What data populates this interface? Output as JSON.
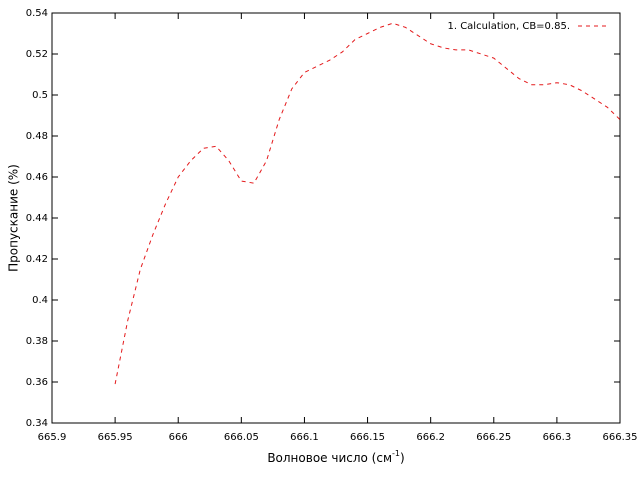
{
  "chart_data": {
    "type": "line",
    "xlabel": [
      "Волновое число (см",
      "-1",
      ")"
    ],
    "ylabel": "Пропускание (%)",
    "x": [
      665.95,
      665.96,
      665.97,
      665.98,
      665.99,
      666.0,
      666.01,
      666.02,
      666.03,
      666.04,
      666.05,
      666.06,
      666.07,
      666.08,
      666.09,
      666.1,
      666.11,
      666.12,
      666.13,
      666.14,
      666.15,
      666.16,
      666.17,
      666.18,
      666.19,
      666.2,
      666.21,
      666.22,
      666.23,
      666.24,
      666.25,
      666.26,
      666.27,
      666.28,
      666.29,
      666.3,
      666.31,
      666.32,
      666.33,
      666.34,
      666.35
    ],
    "series": [
      {
        "name": "1. Calculation, CB=0.85.",
        "color": "#e41a1c",
        "values": [
          0.359,
          0.39,
          0.415,
          0.432,
          0.447,
          0.46,
          0.468,
          0.474,
          0.475,
          0.468,
          0.458,
          0.457,
          0.468,
          0.488,
          0.503,
          0.511,
          0.514,
          0.517,
          0.521,
          0.527,
          0.53,
          0.533,
          0.535,
          0.533,
          0.529,
          0.525,
          0.523,
          0.522,
          0.522,
          0.52,
          0.518,
          0.513,
          0.508,
          0.505,
          0.505,
          0.506,
          0.505,
          0.502,
          0.498,
          0.494,
          0.488
        ]
      }
    ],
    "xlim": [
      665.9,
      666.35
    ],
    "xticks": [
      665.9,
      665.95,
      666,
      666.05,
      666.1,
      666.15,
      666.2,
      666.25,
      666.3,
      666.35
    ],
    "ylim": [
      0.34,
      0.54
    ],
    "yticks": [
      0.34,
      0.36,
      0.38,
      0.4,
      0.42,
      0.44,
      0.46,
      0.48,
      0.5,
      0.52,
      0.54
    ],
    "legend": "top-right",
    "grid": false
  }
}
